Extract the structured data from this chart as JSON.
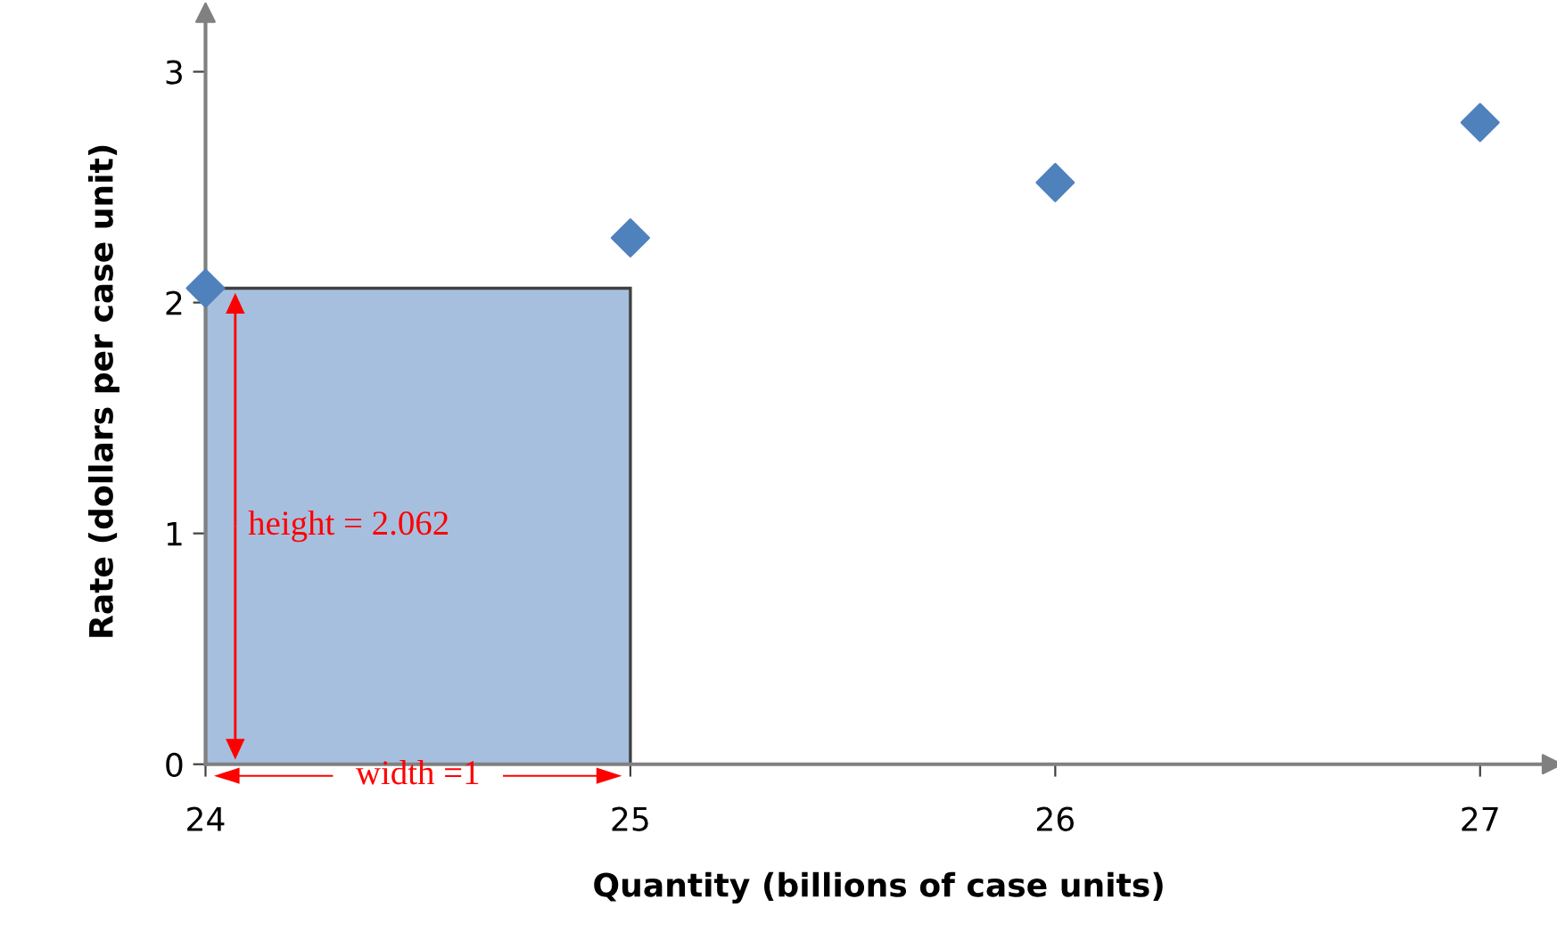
{
  "chart_data": {
    "type": "scatter",
    "xlabel": "Quantity (billions of case units)",
    "ylabel": "Rate (dollars per case unit)",
    "xlim": [
      24,
      27.17
    ],
    "ylim": [
      0,
      3.23
    ],
    "xticks": [
      24,
      25,
      26,
      27
    ],
    "yticks": [
      0,
      1,
      2,
      3
    ],
    "grid": false,
    "marker": "diamond",
    "series": [
      {
        "type": "histogram",
        "bins": [
          24,
          25
        ],
        "values": [
          2.062
        ],
        "color": "#a7bfde"
      },
      {
        "x": [
          24,
          25,
          26,
          27
        ],
        "values": [
          2.062,
          2.28,
          2.52,
          2.78
        ],
        "color": "#4f81bd"
      }
    ],
    "annotations": [
      "height = 2.062",
      "width =1"
    ]
  }
}
